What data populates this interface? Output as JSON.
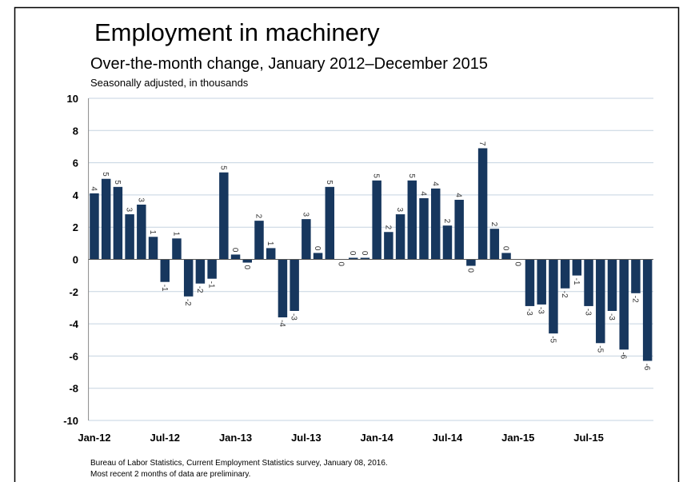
{
  "chart_data": {
    "type": "bar",
    "title": "Employment in machinery",
    "subtitle": "Over-the-month change, January 2012–December 2015",
    "note": "Seasonally adjusted, in thousands",
    "source": "Bureau of Labor Statistics, Current Employment Statistics survey, January 08, 2016.",
    "footnote": "Most recent 2 months of data are preliminary.",
    "categories": [
      "Jan-12",
      null,
      null,
      null,
      null,
      null,
      "Jul-12",
      null,
      null,
      null,
      null,
      null,
      "Jan-13",
      null,
      null,
      null,
      null,
      null,
      "Jul-13",
      null,
      null,
      null,
      null,
      null,
      "Jan-14",
      null,
      null,
      null,
      null,
      null,
      "Jul-14",
      null,
      null,
      null,
      null,
      null,
      "Jan-15",
      null,
      null,
      null,
      null,
      null,
      "Jul-15",
      null,
      null,
      null,
      null,
      null
    ],
    "values": [
      4.1,
      5.0,
      4.5,
      2.8,
      3.4,
      1.4,
      -1.4,
      1.3,
      -2.3,
      -1.5,
      -1.2,
      5.4,
      0.3,
      -0.2,
      2.4,
      0.7,
      -3.6,
      -3.2,
      2.5,
      0.4,
      4.5,
      0.0,
      0.1,
      0.1,
      4.9,
      1.7,
      2.8,
      4.9,
      3.8,
      4.4,
      2.1,
      3.7,
      -0.4,
      6.9,
      1.9,
      0.4,
      0.0,
      -2.9,
      -2.8,
      -4.6,
      -1.8,
      -1.0,
      -2.9,
      -5.2,
      -3.2,
      -5.6,
      -2.1,
      -6.3
    ],
    "value_labels": [
      "4",
      "5",
      "5",
      "3",
      "3",
      "1",
      "-1",
      "1",
      "-2",
      "-2",
      "-1",
      "5",
      "0",
      "0",
      "2",
      "1",
      "-4",
      "-3",
      "3",
      "0",
      "5",
      "0",
      "0",
      "0",
      "5",
      "2",
      "3",
      "5",
      "4",
      "4",
      "2",
      "4",
      "0",
      "7",
      "2",
      "0",
      "0",
      "-3",
      "-3",
      "-5",
      "-2",
      "-1",
      "-3",
      "-5",
      "-3",
      "-6",
      "-2",
      "-6"
    ],
    "color": "#17375e",
    "ylim": [
      -10,
      10
    ],
    "yticks": [
      -10,
      -8,
      -6,
      -4,
      -2,
      0,
      2,
      4,
      6,
      8,
      10
    ],
    "grid": true
  }
}
